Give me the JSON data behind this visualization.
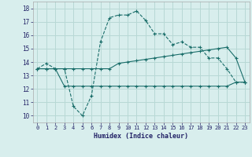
{
  "title": "",
  "xlabel": "Humidex (Indice chaleur)",
  "ylabel": "",
  "bg_color": "#d8eeed",
  "grid_color": "#b8d8d5",
  "line_color": "#1a6e6a",
  "xlim": [
    -0.5,
    23.5
  ],
  "ylim": [
    9.5,
    18.5
  ],
  "xticks": [
    0,
    1,
    2,
    3,
    4,
    5,
    6,
    7,
    8,
    9,
    10,
    11,
    12,
    13,
    14,
    15,
    16,
    17,
    18,
    19,
    20,
    21,
    22,
    23
  ],
  "yticks": [
    10,
    11,
    12,
    13,
    14,
    15,
    16,
    17,
    18
  ],
  "line1_x": [
    0,
    1,
    2,
    3,
    4,
    5,
    6,
    7,
    8,
    9,
    10,
    11,
    12,
    13,
    14,
    15,
    16,
    17,
    18,
    19,
    20,
    21,
    22,
    23
  ],
  "line1_y": [
    13.5,
    13.9,
    13.5,
    13.5,
    10.7,
    10.0,
    11.5,
    15.5,
    17.3,
    17.5,
    17.5,
    17.8,
    17.1,
    16.1,
    16.1,
    15.3,
    15.5,
    15.1,
    15.1,
    14.3,
    14.3,
    13.5,
    12.5,
    12.5
  ],
  "line2_x": [
    0,
    1,
    2,
    3,
    4,
    5,
    6,
    7,
    8,
    9,
    10,
    11,
    12,
    13,
    14,
    15,
    16,
    17,
    18,
    19,
    20,
    21,
    22,
    23
  ],
  "line2_y": [
    13.5,
    13.5,
    13.5,
    13.5,
    13.5,
    13.5,
    13.5,
    13.5,
    13.5,
    13.9,
    14.0,
    14.1,
    14.2,
    14.3,
    14.4,
    14.5,
    14.6,
    14.7,
    14.8,
    14.9,
    15.0,
    15.1,
    14.3,
    12.5
  ],
  "line3_x": [
    0,
    1,
    2,
    3,
    4,
    5,
    6,
    7,
    8,
    9,
    10,
    11,
    12,
    13,
    14,
    15,
    16,
    17,
    18,
    19,
    20,
    21,
    22,
    23
  ],
  "line3_y": [
    13.5,
    13.5,
    13.5,
    12.2,
    12.2,
    12.2,
    12.2,
    12.2,
    12.2,
    12.2,
    12.2,
    12.2,
    12.2,
    12.2,
    12.2,
    12.2,
    12.2,
    12.2,
    12.2,
    12.2,
    12.2,
    12.2,
    12.5,
    12.5
  ]
}
